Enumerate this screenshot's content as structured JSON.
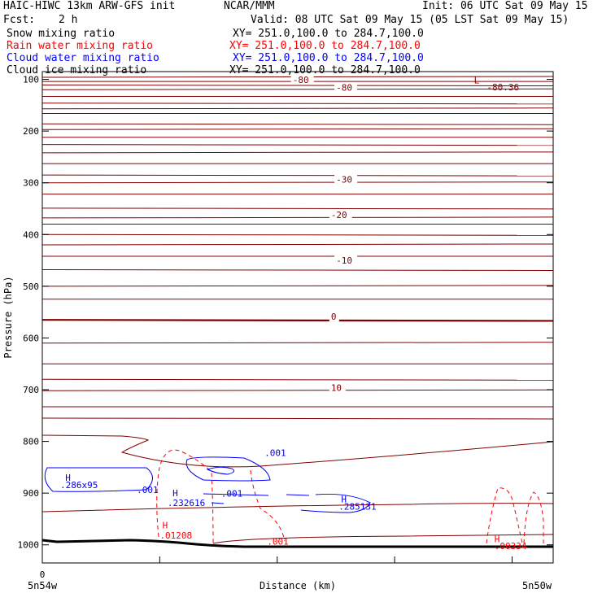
{
  "header": {
    "model": "HAIC-HIWC 13km ARW-GFS init",
    "org": "NCAR/MMM",
    "init": "Init: 06 UTC Sat 09 May 15",
    "fcst_label": "Fcst:",
    "fcst_value": "2 h",
    "valid": "Valid: 08 UTC Sat 09 May 15 (05 LST Sat 09 May 15)"
  },
  "fields": [
    {
      "name": "Snow mixing ratio",
      "xy": "XY= 251.0,100.0 to 284.7,100.0",
      "color": "#000000"
    },
    {
      "name": "Rain water mixing ratio",
      "xy": "XY= 251.0,100.0 to 284.7,100.0",
      "color": "#ff0000"
    },
    {
      "name": "Cloud water mixing ratio",
      "xy": "XY= 251.0,100.0 to 284.7,100.0",
      "color": "#0000ff"
    },
    {
      "name": "Cloud ice mixing ratio",
      "xy": "XY= 251.0,100.0 to 284.7,100.0",
      "color": "#000000"
    }
  ],
  "colors": {
    "temperature": "#800000",
    "terrain": "#000000",
    "rain": "#ff0000",
    "cloud_water": "#0000ff"
  },
  "chart_data": {
    "type": "contour",
    "ylabel": "Pressure (hPa)",
    "xlabel": "Distance (km)",
    "x_start_label": "5n54w",
    "x_end_label": "5n50w",
    "x_tick_labels": [
      "0"
    ],
    "y_ticks": [
      100,
      200,
      300,
      400,
      500,
      600,
      700,
      800,
      900,
      1000
    ],
    "y_tick_labels": [
      "100",
      "200",
      "300",
      "400",
      "500",
      "600",
      "700",
      "800",
      "900",
      "1000"
    ],
    "ylim": [
      1035,
      85
    ],
    "temperature_labels": [
      {
        "text": "-80",
        "x": 0.49,
        "p": 107
      },
      {
        "text": "-80",
        "x": 0.575,
        "p": 122
      },
      {
        "text": "-30",
        "x": 0.575,
        "p": 300
      },
      {
        "text": "-20",
        "x": 0.565,
        "p": 368
      },
      {
        "text": "-10",
        "x": 0.575,
        "p": 456
      },
      {
        "text": "0",
        "x": 0.565,
        "p": 565
      },
      {
        "text": "10",
        "x": 0.565,
        "p": 702
      }
    ],
    "low_marker": {
      "text": "L",
      "x": 0.845,
      "p": 108
    },
    "low_value": {
      "text": "-80.36",
      "x": 0.87,
      "p": 121
    },
    "rain_labels": [
      {
        "text": "H",
        "x": 0.235,
        "p": 968
      },
      {
        "text": ".01208",
        "x": 0.23,
        "p": 988
      },
      {
        "text": ".001",
        "x": 0.44,
        "p": 1000
      },
      {
        "text": "H",
        "x": 0.885,
        "p": 995
      },
      {
        "text": ".00334",
        "x": 0.885,
        "p": 1008
      }
    ],
    "cloud_water_labels": [
      {
        "text": "H",
        "x": 0.045,
        "p": 876
      },
      {
        "text": ".286x95",
        "x": 0.035,
        "p": 890
      },
      {
        "text": ".001",
        "x": 0.185,
        "p": 900
      },
      {
        "text": "H",
        "x": 0.255,
        "p": 906
      },
      {
        "text": ".232616",
        "x": 0.245,
        "p": 925
      },
      {
        "text": ".001",
        "x": 0.35,
        "p": 907
      },
      {
        "text": ".001",
        "x": 0.435,
        "p": 828
      },
      {
        "text": "H",
        "x": 0.585,
        "p": 918
      },
      {
        "text": ".285131",
        "x": 0.58,
        "p": 932
      }
    ],
    "temperature_lines_p": [
      96,
      104,
      111,
      120,
      133,
      146,
      157,
      166,
      186,
      197,
      212,
      226,
      242,
      263,
      285,
      300,
      322,
      349,
      368,
      380,
      400,
      420,
      442,
      468,
      500,
      525,
      565,
      610,
      650,
      680,
      702,
      733,
      755
    ]
  }
}
